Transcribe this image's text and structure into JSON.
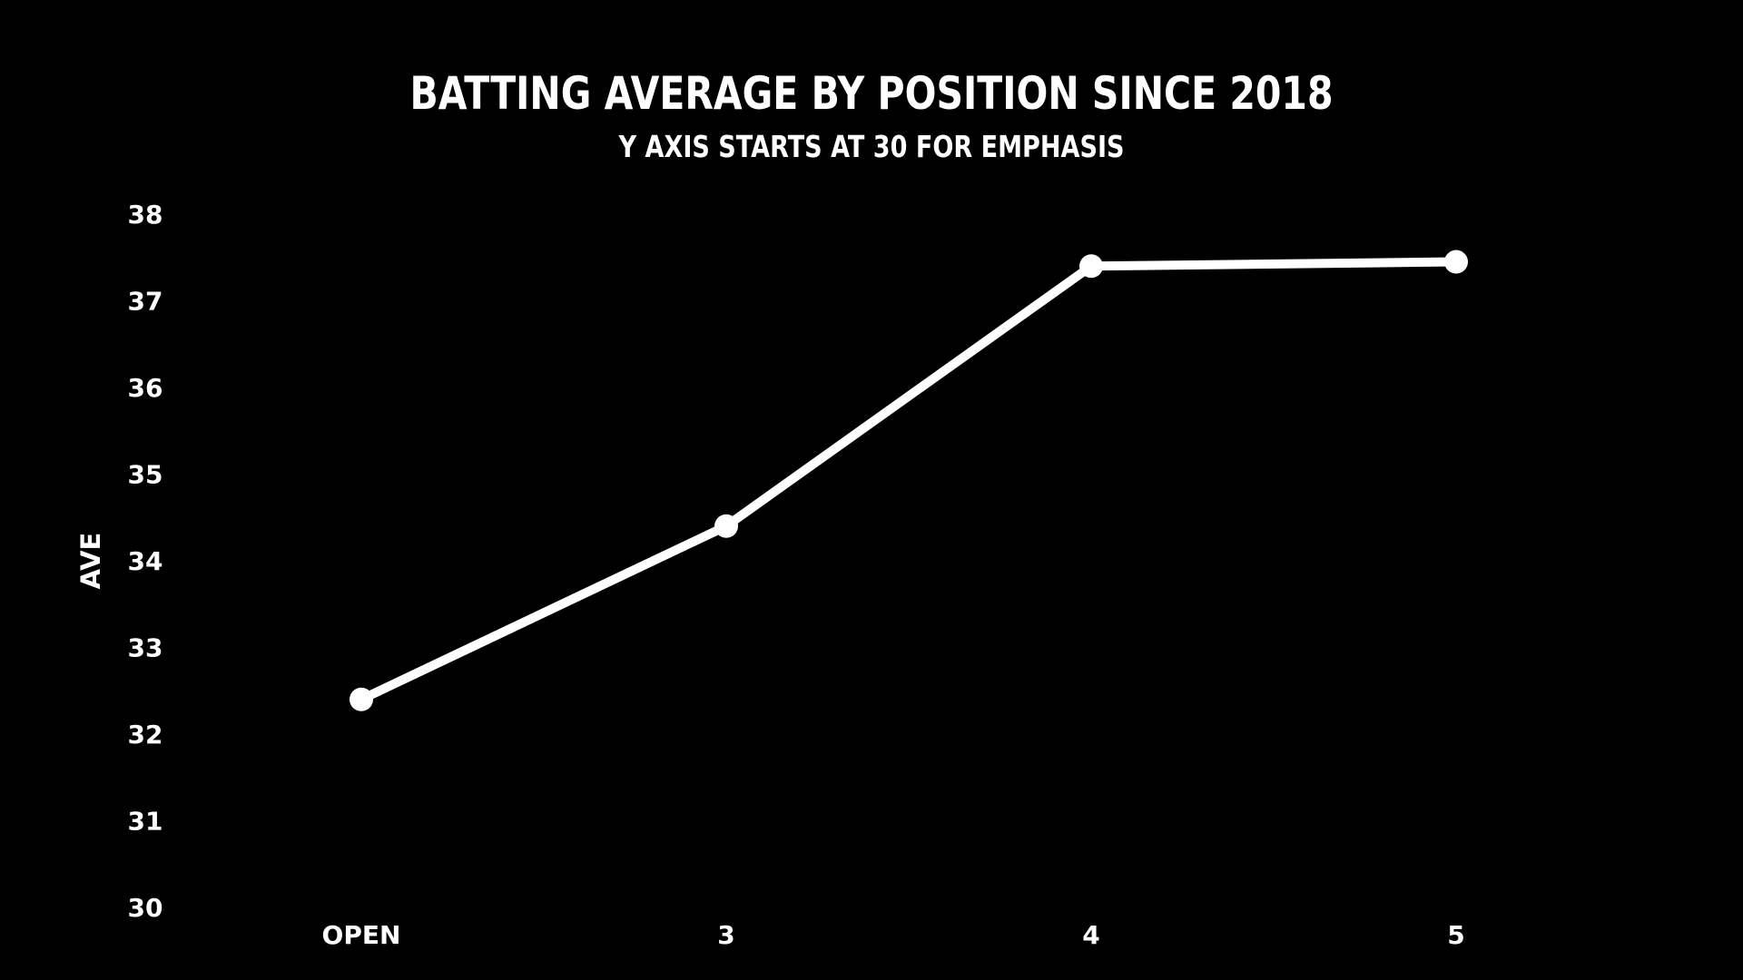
{
  "colors": {
    "background": "#000000",
    "foreground": "#ffffff"
  },
  "chart_data": {
    "type": "line",
    "title": "BATTING AVERAGE BY POSITION SINCE 2018",
    "subtitle": "Y AXIS STARTS AT 30 FOR EMPHASIS",
    "xlabel": "",
    "ylabel": "AVE",
    "categories": [
      "OPEN",
      "3",
      "4",
      "5"
    ],
    "series": [
      {
        "values": [
          32.4,
          34.4,
          37.4,
          37.45
        ]
      }
    ],
    "ylim": [
      30,
      38
    ],
    "yticks": [
      "30",
      "31",
      "32",
      "33",
      "34",
      "35",
      "36",
      "37",
      "38"
    ],
    "grid": false,
    "legend": "none"
  }
}
